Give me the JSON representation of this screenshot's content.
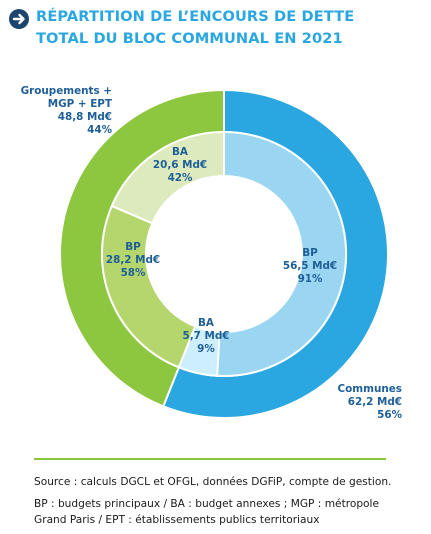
{
  "header": {
    "title_line1": "RÉPARTITION DE L’ENCOURS DE DETTE",
    "title_line2": "TOTAL DU BLOC COMMUNAL EN 2021"
  },
  "colors": {
    "communes": "#2aa7e0",
    "communes_bp": "#9ad6f2",
    "communes_ba": "#cdeefc",
    "groupements": "#8dc63f",
    "groupements_bp": "#b5d56d",
    "groupements_ba": "#ddeabe",
    "label_text": "#1f5f97",
    "title": "#2aa7e0"
  },
  "chart_data": {
    "type": "pie",
    "variant": "nested-donut",
    "outer_ring": [
      {
        "label_lines": [
          "Communes",
          "62,2 Md€",
          "56%"
        ],
        "value": 62.2,
        "percent": 56,
        "color": "#2aa7e0"
      },
      {
        "label_lines": [
          "Groupements +",
          "MGP + EPT",
          "48,8 Md€",
          "44%"
        ],
        "value": 48.8,
        "percent": 44,
        "color": "#8dc63f"
      }
    ],
    "inner_ring": [
      {
        "parent": "Communes",
        "label_lines": [
          "BP",
          "56,5 Md€",
          "91%"
        ],
        "value": 56.5,
        "percent": 91,
        "color": "#9ad6f2"
      },
      {
        "parent": "Communes",
        "label_lines": [
          "BA",
          "5,7 Md€",
          "9%"
        ],
        "value": 5.7,
        "percent": 9,
        "color": "#cdeefc"
      },
      {
        "parent": "Groupements + MGP + EPT",
        "label_lines": [
          "BP",
          "28,2 Md€",
          "58%"
        ],
        "value": 28.2,
        "percent": 58,
        "color": "#b5d56d"
      },
      {
        "parent": "Groupements + MGP + EPT",
        "label_lines": [
          "BA",
          "20,6 Md€",
          "42%"
        ],
        "value": 20.6,
        "percent": 42,
        "color": "#ddeabe"
      }
    ]
  },
  "footer": {
    "source": "Source : calculs DGCL et OFGL, données DGFiP, compte de gestion.",
    "legend_line1": "BP : budgets principaux / BA : budget annexes ; MGP : métropole",
    "legend_line2": "Grand Paris / EPT : établissements publics territoriaux"
  }
}
